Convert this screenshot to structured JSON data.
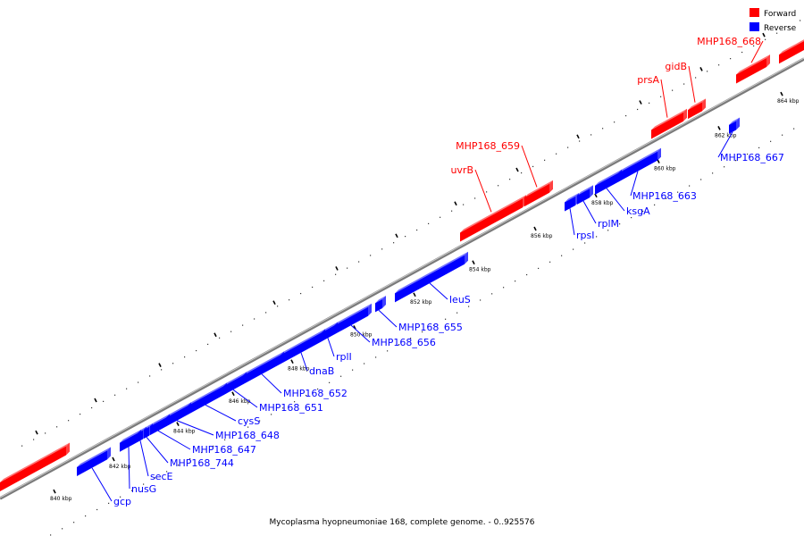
{
  "caption": "Mycoplasma hyopneumoniae 168, complete genome. - 0..925576",
  "legend": [
    {
      "label": "Forward",
      "color": "#ff0000"
    },
    {
      "label": "Reverse",
      "color": "#0000ff"
    }
  ],
  "colors": {
    "forward": "#ff0000",
    "reverse": "#0000ff",
    "backbone": "#888888"
  },
  "scale": {
    "unit": "kbp",
    "major_ticks": [
      840,
      842,
      844,
      846,
      848,
      850,
      852,
      854,
      856,
      858,
      860,
      862,
      864
    ]
  },
  "genes": [
    {
      "label": "gcp",
      "strand": "reverse"
    },
    {
      "label": "nusG",
      "strand": "reverse"
    },
    {
      "label": "secE",
      "strand": "reverse"
    },
    {
      "label": "MHP168_744",
      "strand": "reverse"
    },
    {
      "label": "MHP168_647",
      "strand": "reverse"
    },
    {
      "label": "MHP168_648",
      "strand": "reverse"
    },
    {
      "label": "cysS",
      "strand": "reverse"
    },
    {
      "label": "MHP168_651",
      "strand": "reverse"
    },
    {
      "label": "MHP168_652",
      "strand": "reverse"
    },
    {
      "label": "dnaB",
      "strand": "reverse"
    },
    {
      "label": "rplI",
      "strand": "reverse"
    },
    {
      "label": "MHP168_656",
      "strand": "reverse"
    },
    {
      "label": "MHP168_655",
      "strand": "reverse"
    },
    {
      "label": "leuS",
      "strand": "reverse"
    },
    {
      "label": "uvrB",
      "strand": "forward"
    },
    {
      "label": "MHP168_659",
      "strand": "forward"
    },
    {
      "label": "rpsI",
      "strand": "reverse"
    },
    {
      "label": "rplM",
      "strand": "reverse"
    },
    {
      "label": "ksgA",
      "strand": "reverse"
    },
    {
      "label": "MHP168_663",
      "strand": "reverse"
    },
    {
      "label": "prsA",
      "strand": "forward"
    },
    {
      "label": "gidB",
      "strand": "forward"
    },
    {
      "label": "MHP168_668",
      "strand": "forward"
    },
    {
      "label": "MHP168_667",
      "strand": "reverse"
    }
  ]
}
